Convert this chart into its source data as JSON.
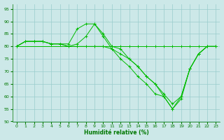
{
  "xlabel": "Humidité relative (%)",
  "bg_color": "#cce8e8",
  "grid_color": "#99cccc",
  "line_color": "#00bb00",
  "tick_color": "#007700",
  "xlim": [
    -0.5,
    23.5
  ],
  "ylim": [
    50,
    97
  ],
  "yticks": [
    50,
    55,
    60,
    65,
    70,
    75,
    80,
    85,
    90,
    95
  ],
  "xticks": [
    0,
    1,
    2,
    3,
    4,
    5,
    6,
    7,
    8,
    9,
    10,
    11,
    12,
    13,
    14,
    15,
    16,
    17,
    18,
    19,
    20,
    21,
    22,
    23
  ],
  "series": [
    {
      "x": [
        0,
        1,
        2,
        3,
        4,
        5,
        6,
        7,
        8,
        9,
        10,
        11,
        12,
        13,
        14,
        15,
        16,
        17,
        18,
        19,
        20,
        21,
        22,
        23
      ],
      "y": [
        80,
        82,
        82,
        82,
        81,
        81,
        81,
        87,
        89,
        89,
        84,
        79,
        75,
        72,
        68,
        65,
        61,
        60,
        55,
        59,
        71,
        77,
        80,
        80
      ]
    },
    {
      "x": [
        0,
        1,
        2,
        3,
        4,
        5,
        6,
        7,
        8,
        9,
        10,
        11,
        12,
        13,
        14,
        15,
        16,
        17,
        18,
        19,
        20,
        21,
        22,
        23
      ],
      "y": [
        80,
        82,
        82,
        82,
        81,
        81,
        80,
        80,
        80,
        80,
        80,
        79,
        77,
        75,
        72,
        68,
        65,
        61,
        57,
        60,
        71,
        77,
        80,
        80
      ]
    },
    {
      "x": [
        0,
        1,
        2,
        3,
        4,
        5,
        6,
        7,
        8,
        9,
        10,
        11,
        12,
        13,
        14,
        15,
        16,
        17,
        18,
        19,
        20,
        21,
        22,
        23
      ],
      "y": [
        80,
        82,
        82,
        82,
        81,
        81,
        80,
        81,
        84,
        89,
        85,
        80,
        79,
        75,
        72,
        68,
        65,
        60,
        55,
        60,
        71,
        77,
        80,
        80
      ]
    },
    {
      "x": [
        0,
        9,
        10,
        11,
        12,
        13,
        14,
        15,
        16,
        17,
        18,
        19,
        20,
        21,
        22,
        23
      ],
      "y": [
        80,
        80,
        80,
        80,
        80,
        80,
        80,
        80,
        80,
        80,
        80,
        80,
        80,
        80,
        80,
        80
      ]
    }
  ]
}
